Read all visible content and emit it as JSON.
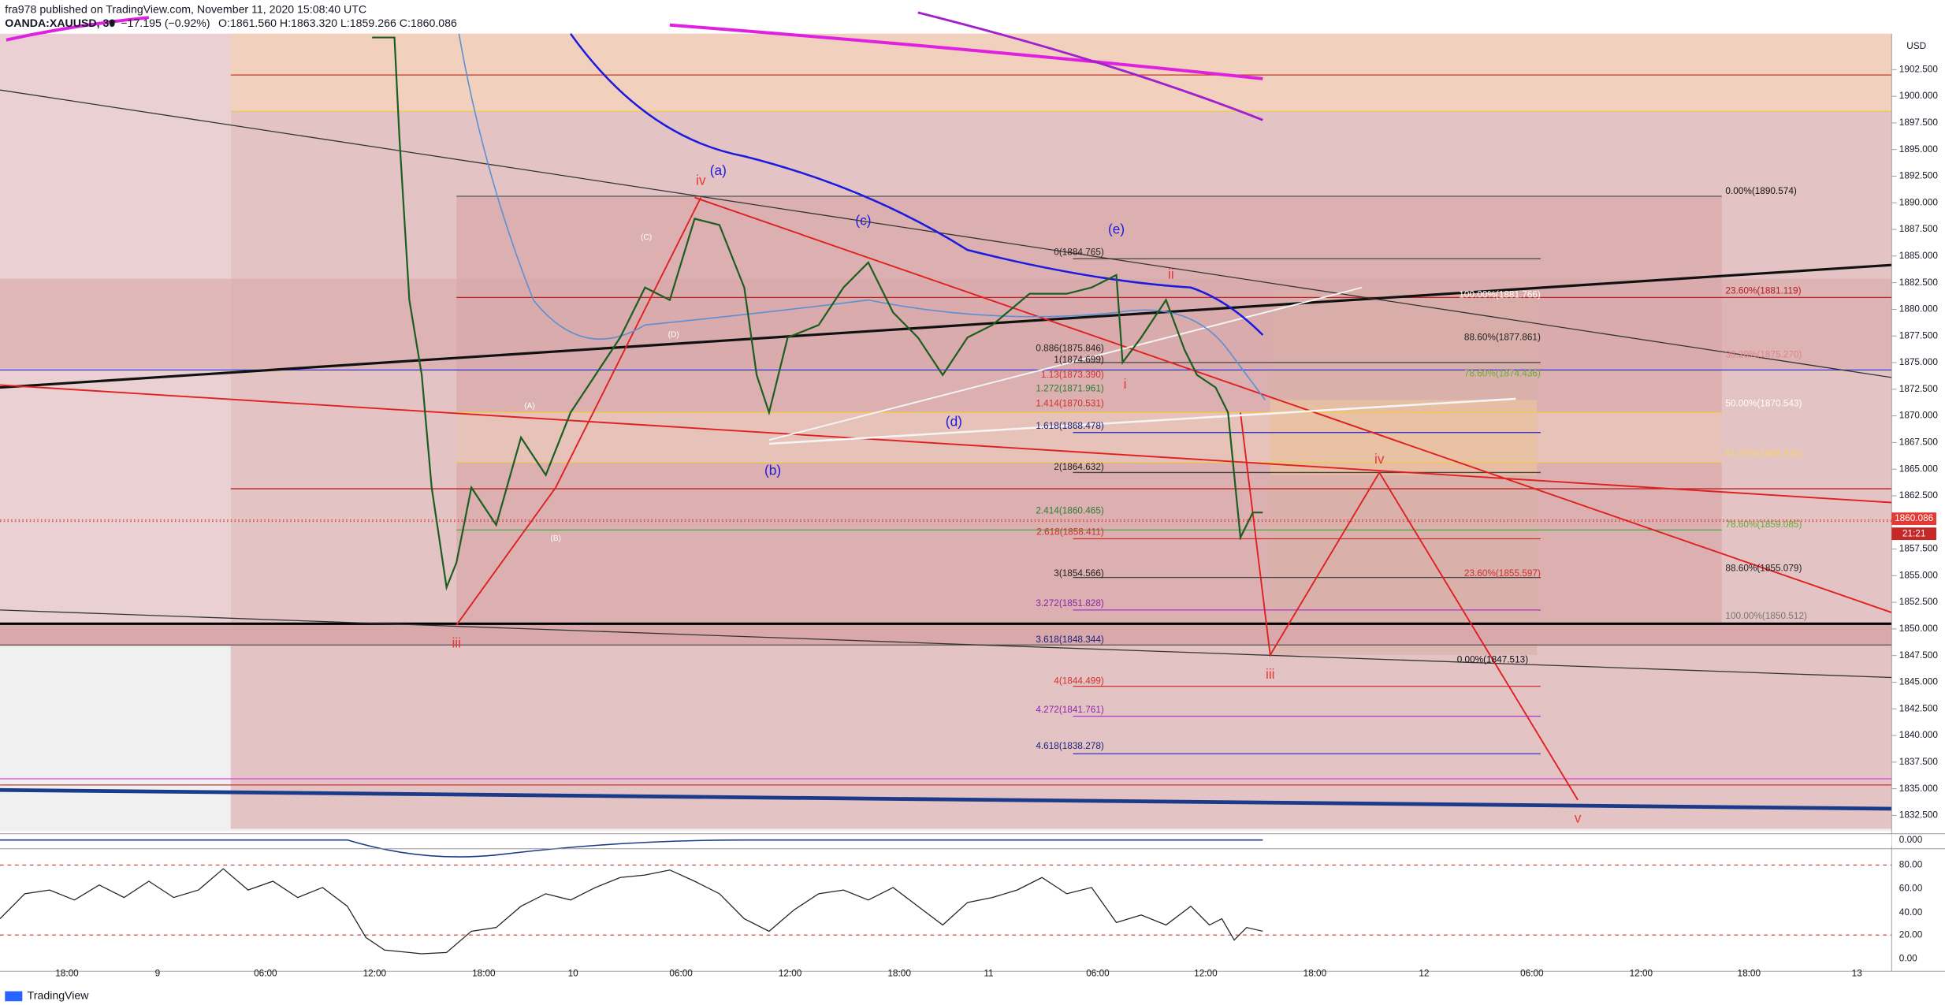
{
  "header": {
    "author_line": "fra978 published on TradingView.com, November 11, 2020 15:08:40 UTC",
    "symbol": "OANDA:XAUUSD, 30",
    "change": "▼ −17.195 (−0.92%)",
    "ohlc": "O:1861.560 H:1863.320 L:1859.266 C:1860.086"
  },
  "price_axis": {
    "currency": "USD",
    "ticks": [
      {
        "value": 1902.5,
        "label": "1902.500"
      },
      {
        "value": 1900,
        "label": "1900.000"
      },
      {
        "value": 1897.5,
        "label": "1897.500"
      },
      {
        "value": 1895,
        "label": "1895.000"
      },
      {
        "value": 1892.5,
        "label": "1892.500"
      },
      {
        "value": 1890,
        "label": "1890.000"
      },
      {
        "value": 1887.5,
        "label": "1887.500"
      },
      {
        "value": 1885,
        "label": "1885.000"
      },
      {
        "value": 1882.5,
        "label": "1882.500"
      },
      {
        "value": 1880,
        "label": "1880.000"
      },
      {
        "value": 1877.5,
        "label": "1877.500"
      },
      {
        "value": 1875,
        "label": "1875.000"
      },
      {
        "value": 1872.5,
        "label": "1872.500"
      },
      {
        "value": 1870,
        "label": "1870.000"
      },
      {
        "value": 1867.5,
        "label": "1867.500"
      },
      {
        "value": 1865,
        "label": "1865.000"
      },
      {
        "value": 1862.5,
        "label": "1862.500"
      },
      {
        "value": 1857.5,
        "label": "1857.500"
      },
      {
        "value": 1855,
        "label": "1855.000"
      },
      {
        "value": 1852.5,
        "label": "1852.500"
      },
      {
        "value": 1850,
        "label": "1850.000"
      },
      {
        "value": 1847.5,
        "label": "1847.500"
      },
      {
        "value": 1845,
        "label": "1845.000"
      },
      {
        "value": 1842.5,
        "label": "1842.500"
      },
      {
        "value": 1840,
        "label": "1840.000"
      },
      {
        "value": 1837.5,
        "label": "1837.500"
      },
      {
        "value": 1835,
        "label": "1835.000"
      },
      {
        "value": 1832.5,
        "label": "1832.500"
      }
    ],
    "last_price": {
      "value": 1860.086,
      "label": "1860.086"
    },
    "countdown": "21:21"
  },
  "indicator_axis": {
    "ticks": [
      "0.000"
    ]
  },
  "rsi_axis": {
    "ticks": [
      "80.00",
      "60.00",
      "40.00",
      "20.00",
      "0.00"
    ]
  },
  "time_axis": [
    "18:00",
    "9",
    "06:00",
    "12:00",
    "18:00",
    "10",
    "06:00",
    "12:00",
    "18:00",
    "11",
    "06:00",
    "12:00",
    "18:00",
    "12",
    "06:00",
    "12:00",
    "18:00",
    "13"
  ],
  "fib_labels": [
    "0(1884.765)",
    "0.886(1875.846)",
    "1(1874.699)",
    "1.13(1873.390)",
    "1.272(1871.961)",
    "1.414(1870.531)",
    "1.618(1868.478)",
    "2(1864.632)",
    "2.414(1860.465)",
    "2.618(1858.411)",
    "3(1854.566)",
    "3.272(1851.828)",
    "3.618(1848.344)",
    "4(1844.499)",
    "4.272(1841.761)",
    "4.618(1838.278)",
    "100.00%(1881.766)",
    "88.60%(1877.861)",
    "78.60%(1874.436)",
    "23.60%(1855.597)",
    "0.00%(1847.513)",
    "0.00%(1890.574)",
    "23.60%(1881.119)",
    "38.20%(1875.270)",
    "50.00%(1870.543)",
    "61.80%(1865.816)",
    "78.60%(1859.085)",
    "88.60%(1855.079)",
    "100.00%(1850.512)"
  ],
  "wave_labels": [
    "iv",
    "(a)",
    "(b)",
    "(c)",
    "(d)",
    "(e)",
    "iii",
    "iii",
    "iv",
    "v",
    "i",
    "ii",
    "(A)",
    "(B)",
    "(C)",
    "(D)"
  ],
  "footer": "TradingView"
}
